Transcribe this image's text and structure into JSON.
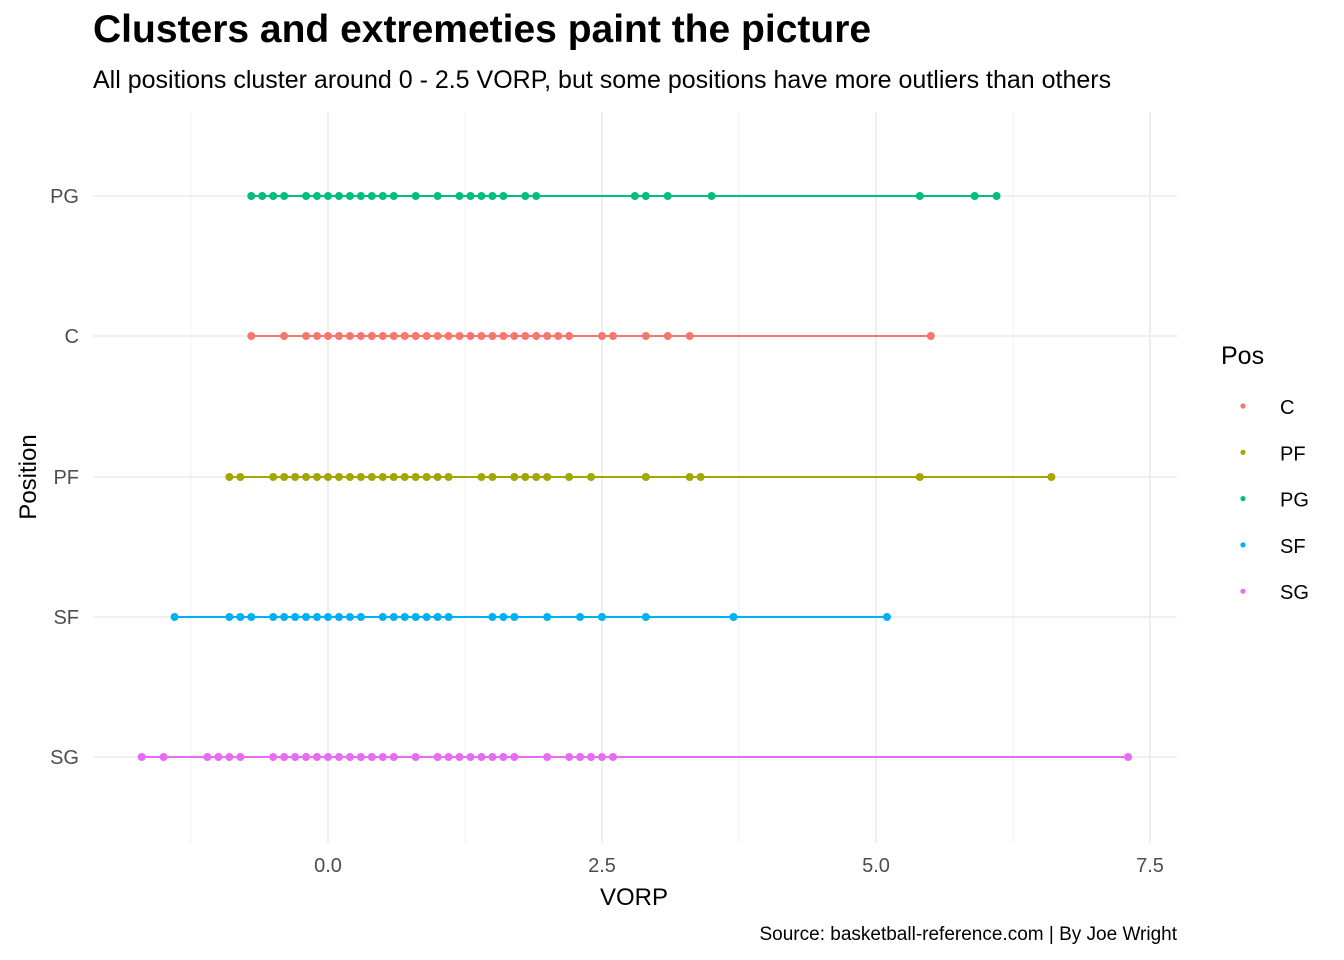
{
  "chart_data": {
    "type": "scatter",
    "title": "Clusters and extremeties paint the picture",
    "subtitle": "All positions cluster around 0 - 2.5 VORP, but some positions have more outliers than others",
    "caption": "Source: basketball-reference.com | By Joe Wright",
    "xlabel": "VORP",
    "ylabel": "Position",
    "xlim": [
      -2.1,
      7.75
    ],
    "x_ticks": [
      0.0,
      2.5,
      5.0,
      7.5
    ],
    "x_tick_labels": [
      "0.0",
      "2.5",
      "5.0",
      "7.5"
    ],
    "categories": [
      "PG",
      "C",
      "PF",
      "SF",
      "SG"
    ],
    "grid": true,
    "legend": {
      "title": "Pos",
      "placement": "right",
      "entries": [
        "C",
        "PF",
        "PG",
        "SF",
        "SG"
      ]
    },
    "series": [
      {
        "name": "C",
        "color": "#F8766D",
        "values": [
          -0.7,
          -0.4,
          -0.2,
          -0.1,
          0.0,
          0.1,
          0.2,
          0.3,
          0.4,
          0.5,
          0.6,
          0.7,
          0.8,
          0.9,
          1.0,
          1.1,
          1.2,
          1.3,
          1.4,
          1.5,
          1.6,
          1.7,
          1.8,
          1.9,
          2.0,
          2.1,
          2.2,
          2.5,
          2.6,
          2.9,
          3.1,
          3.3,
          5.5
        ]
      },
      {
        "name": "PF",
        "color": "#A3A500",
        "values": [
          -0.9,
          -0.8,
          -0.5,
          -0.4,
          -0.3,
          -0.2,
          -0.1,
          0.0,
          0.1,
          0.2,
          0.3,
          0.4,
          0.5,
          0.6,
          0.7,
          0.8,
          0.9,
          1.0,
          1.1,
          1.4,
          1.5,
          1.7,
          1.8,
          1.9,
          2.0,
          2.2,
          2.4,
          2.9,
          3.3,
          3.4,
          5.4,
          6.6
        ]
      },
      {
        "name": "PG",
        "color": "#00BF7D",
        "values": [
          -0.7,
          -0.6,
          -0.5,
          -0.4,
          -0.2,
          -0.1,
          0.0,
          0.1,
          0.2,
          0.3,
          0.4,
          0.5,
          0.6,
          0.8,
          1.0,
          1.2,
          1.3,
          1.4,
          1.5,
          1.6,
          1.8,
          1.9,
          2.8,
          2.9,
          3.1,
          3.5,
          5.4,
          5.9,
          6.1
        ]
      },
      {
        "name": "SF",
        "color": "#00B0F6",
        "values": [
          -1.4,
          -0.9,
          -0.8,
          -0.7,
          -0.5,
          -0.4,
          -0.3,
          -0.2,
          -0.1,
          0.0,
          0.1,
          0.2,
          0.3,
          0.5,
          0.6,
          0.7,
          0.8,
          0.9,
          1.0,
          1.1,
          1.5,
          1.6,
          1.7,
          2.0,
          2.3,
          2.5,
          2.9,
          3.7,
          5.1
        ]
      },
      {
        "name": "SG",
        "color": "#E76BF3",
        "values": [
          -1.7,
          -1.5,
          -1.1,
          -1.0,
          -0.9,
          -0.8,
          -0.5,
          -0.4,
          -0.3,
          -0.2,
          -0.1,
          0.0,
          0.1,
          0.2,
          0.3,
          0.4,
          0.5,
          0.6,
          0.8,
          1.0,
          1.1,
          1.2,
          1.3,
          1.4,
          1.5,
          1.6,
          1.7,
          2.0,
          2.2,
          2.3,
          2.4,
          2.5,
          2.6,
          7.3
        ]
      }
    ]
  }
}
